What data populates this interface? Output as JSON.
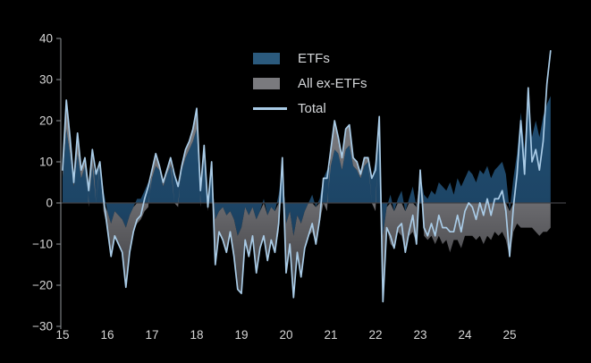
{
  "chart_data": {
    "type": "area",
    "title": "",
    "xlabel": "",
    "ylabel": "",
    "stacking": "sign",
    "grid": false,
    "legend_position": "top-center",
    "ylim": [
      -30,
      40
    ],
    "xlim": [
      2015,
      2026.2
    ],
    "y_ticks": [
      40,
      30,
      20,
      10,
      0,
      -10,
      -20,
      -30
    ],
    "x_tick_years": [
      2015,
      2016,
      2017,
      2018,
      2019,
      2020,
      2021,
      2022,
      2023,
      2024,
      2025
    ],
    "x_tick_labels": [
      "15",
      "16",
      "17",
      "18",
      "19",
      "20",
      "21",
      "22",
      "23",
      "24",
      "25"
    ],
    "x_start_year": 2015,
    "x_step_years": 0.0833333,
    "series": [
      {
        "name": "ETFs",
        "type": "area",
        "color": "#1d4566",
        "values": [
          6,
          18,
          12,
          4,
          12,
          6,
          9,
          4,
          9,
          7,
          9,
          3,
          -2,
          -5,
          -2,
          -3,
          -4,
          -6,
          -3,
          -1,
          1,
          1,
          3,
          5,
          6,
          9,
          8,
          4,
          7,
          9,
          7,
          5,
          8,
          11,
          13,
          15,
          18,
          4,
          11,
          1,
          8,
          -4,
          -2,
          -1,
          -3,
          -2,
          -4,
          -8,
          -6,
          -1,
          -3,
          -1,
          -4,
          -2,
          1,
          -3,
          -1,
          -2,
          2,
          9,
          -5,
          -2,
          -8,
          -3,
          -5,
          -2,
          0,
          2,
          -1,
          1,
          6,
          8,
          9,
          13,
          12,
          8,
          13,
          14,
          9,
          8,
          6,
          9,
          10,
          6,
          10,
          18,
          -8,
          -1,
          2,
          -2,
          1,
          3,
          -2,
          1,
          4,
          -1,
          7,
          2,
          1,
          3,
          2,
          5,
          4,
          3,
          5,
          2,
          6,
          4,
          6,
          8,
          7,
          5,
          8,
          7,
          9,
          6,
          8,
          9,
          10,
          7,
          -2,
          6,
          12,
          22,
          13,
          26,
          16,
          20,
          16,
          21,
          24,
          26
        ]
      },
      {
        "name": "All ex-ETFs",
        "type": "area",
        "color": "#6b6b6f",
        "values": [
          2,
          7,
          4,
          1,
          5,
          2,
          2,
          -1,
          4,
          0,
          1,
          -2,
          -4,
          -8,
          -6,
          -7,
          -8,
          -14,
          -9,
          -6,
          -5,
          -4,
          -2,
          -1,
          2,
          3,
          1,
          1,
          1,
          2,
          0,
          -1,
          1,
          2,
          2,
          3,
          5,
          -1,
          3,
          -2,
          2,
          -11,
          -5,
          -8,
          -9,
          -5,
          -9,
          -13,
          -16,
          -8,
          -10,
          -7,
          -13,
          -9,
          -9,
          -11,
          -8,
          -10,
          -7,
          2,
          -12,
          -8,
          -15,
          -9,
          -13,
          -9,
          -8,
          -7,
          -9,
          -5,
          0,
          -2,
          4,
          7,
          4,
          3,
          5,
          5,
          2,
          2,
          1,
          2,
          1,
          0,
          -2,
          3,
          -16,
          -5,
          -10,
          -9,
          -7,
          -8,
          -10,
          -8,
          -7,
          -9,
          1,
          -8,
          -9,
          -8,
          -10,
          -8,
          -10,
          -9,
          -12,
          -9,
          -9,
          -11,
          -8,
          -8,
          -8,
          -9,
          -8,
          -10,
          -8,
          -9,
          -7,
          -8,
          -7,
          -9,
          -11,
          -7,
          -5,
          -6,
          -6,
          -6,
          -6,
          -7,
          -8,
          -7,
          -7,
          -6
        ]
      },
      {
        "name": "Total",
        "type": "line",
        "color": "#a9cbe6",
        "values": [
          8,
          25,
          16,
          5,
          17,
          8,
          11,
          3,
          13,
          7,
          10,
          1,
          -6,
          -13,
          -8,
          -10,
          -12,
          -20.5,
          -12,
          -7,
          -4,
          -3,
          1,
          4,
          8,
          12,
          9,
          5,
          8,
          11,
          7,
          4,
          9,
          13,
          15,
          18,
          23,
          3,
          14,
          -1,
          10,
          -15,
          -7,
          -9,
          -12,
          -7,
          -13,
          -21,
          -22,
          -9,
          -13,
          -8,
          -17,
          -11,
          -8,
          -14,
          -9,
          -12,
          -5,
          11,
          -17,
          -10,
          -23,
          -12,
          -18,
          -11,
          -8,
          -5,
          -10,
          -4,
          6,
          6,
          13,
          20,
          16,
          11,
          18,
          19,
          11,
          10,
          7,
          11,
          11,
          6,
          8,
          21,
          -24,
          -6,
          -8,
          -11,
          -6,
          -5,
          -12,
          -7,
          -3,
          -10,
          8,
          -6,
          -8,
          -5,
          -8,
          -3,
          -6,
          -6,
          -7,
          -7,
          -3,
          -7,
          -2,
          0,
          -1,
          -4,
          0,
          -3,
          1,
          -3,
          1,
          1,
          3,
          -2,
          -13,
          -1,
          7,
          20,
          7,
          28,
          10,
          13,
          8,
          15,
          29,
          37
        ]
      }
    ]
  },
  "legend": {
    "items": [
      {
        "label": "ETFs",
        "swatch": "fill",
        "color": "#2b5a7d"
      },
      {
        "label": "All ex-ETFs",
        "swatch": "fill",
        "color": "#7a7a7e"
      },
      {
        "label": "Total",
        "swatch": "line",
        "color": "#a9cbe6"
      }
    ]
  },
  "colors": {
    "background": "#000000",
    "axis": "#8f9498",
    "tick_label": "#d6d6d6",
    "zero_line": "#404045"
  }
}
